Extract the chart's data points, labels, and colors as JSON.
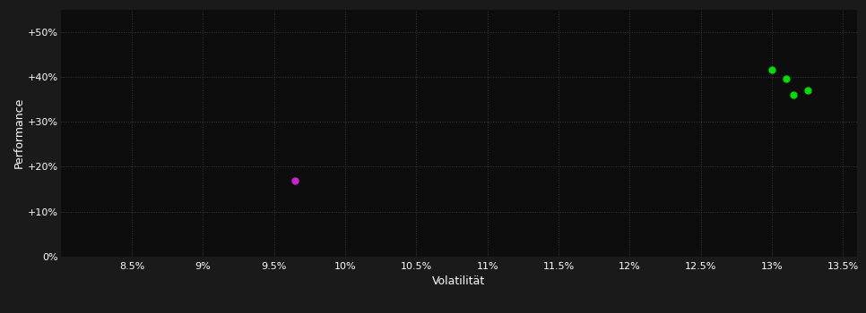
{
  "background_color": "#1a1a1a",
  "plot_bg_color": "#0d0d0d",
  "grid_color": "#3a3a3a",
  "text_color": "#ffffff",
  "xlabel": "Volatilität",
  "ylabel": "Performance",
  "xlim": [
    0.08,
    0.136
  ],
  "ylim": [
    0.0,
    0.55
  ],
  "xticks": [
    0.085,
    0.09,
    0.095,
    0.1,
    0.105,
    0.11,
    0.115,
    0.12,
    0.125,
    0.13,
    0.135
  ],
  "xtick_labels": [
    "8.5%",
    "9%",
    "9.5%",
    "10%",
    "10.5%",
    "11%",
    "11.5%",
    "12%",
    "12.5%",
    "13%",
    "13.5%"
  ],
  "yticks": [
    0.0,
    0.1,
    0.2,
    0.3,
    0.4,
    0.5
  ],
  "ytick_labels": [
    "0%",
    "+10%",
    "+20%",
    "+30%",
    "+40%",
    "+50%"
  ],
  "points_green": [
    [
      0.13,
      0.415
    ],
    [
      0.1315,
      0.36
    ],
    [
      0.1325,
      0.37
    ],
    [
      0.131,
      0.395
    ]
  ],
  "points_magenta": [
    [
      0.0965,
      0.17
    ]
  ],
  "green_color": "#00dd00",
  "magenta_color": "#cc22cc",
  "point_size": 25
}
